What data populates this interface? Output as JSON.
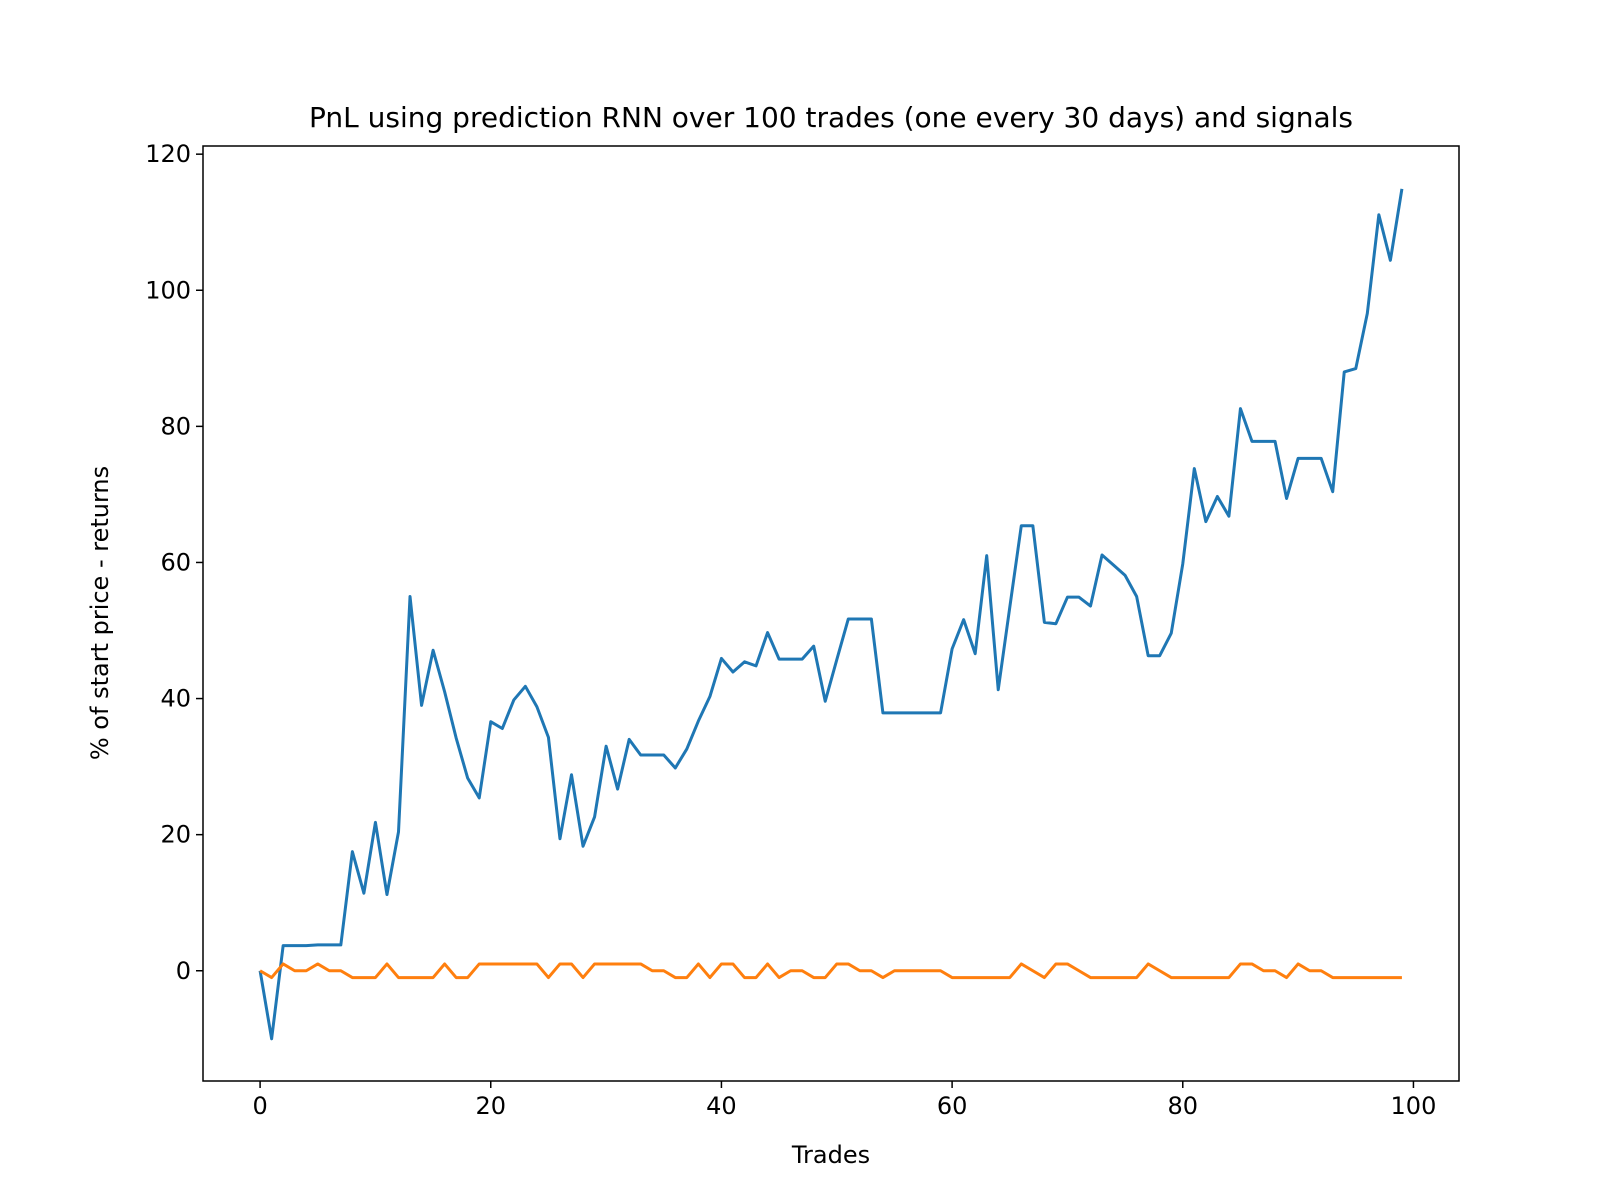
{
  "chart_data": {
    "type": "line",
    "title": "PnL using prediction RNN over 100 trades (one every 30 days) and signals",
    "xlabel": "Trades",
    "ylabel": "% of start price - returns",
    "x": [
      0,
      1,
      2,
      3,
      4,
      5,
      6,
      7,
      8,
      9,
      10,
      11,
      12,
      13,
      14,
      15,
      16,
      17,
      18,
      19,
      20,
      21,
      22,
      23,
      24,
      25,
      26,
      27,
      28,
      29,
      30,
      31,
      32,
      33,
      34,
      35,
      36,
      37,
      38,
      39,
      40,
      41,
      42,
      43,
      44,
      45,
      46,
      47,
      48,
      49,
      50,
      51,
      52,
      53,
      54,
      55,
      56,
      57,
      58,
      59,
      60,
      61,
      62,
      63,
      64,
      65,
      66,
      67,
      68,
      69,
      70,
      71,
      72,
      73,
      74,
      75,
      76,
      77,
      78,
      79,
      80,
      81,
      82,
      83,
      84,
      85,
      86,
      87,
      88,
      89,
      90,
      91,
      92,
      93,
      94,
      95,
      96,
      97,
      98,
      99
    ],
    "series": [
      {
        "color": "#1f77b4",
        "values": [
          0,
          -10,
          3.7,
          3.7,
          3.7,
          3.8,
          3.8,
          3.8,
          17.5,
          11.4,
          21.8,
          11.2,
          20.4,
          55,
          39,
          47.1,
          41,
          34.2,
          28.3,
          25.4,
          36.6,
          35.6,
          39.8,
          41.8,
          38.8,
          34.3,
          19.4,
          28.8,
          18.3,
          22.6,
          33,
          26.7,
          34,
          31.7,
          31.7,
          31.7,
          29.8,
          32.6,
          36.7,
          40.3,
          45.9,
          43.9,
          45.4,
          44.8,
          49.7,
          45.8,
          45.8,
          45.8,
          47.7,
          39.6,
          45.7,
          51.7,
          51.7,
          51.7,
          37.9,
          37.9,
          37.9,
          37.9,
          37.9,
          37.9,
          47.3,
          51.6,
          46.6,
          61,
          41.3,
          53.4,
          65.4,
          65.4,
          51.2,
          51,
          54.9,
          54.9,
          53.6,
          61.1,
          59.6,
          58.1,
          55,
          46.3,
          46.3,
          49.6,
          59.8,
          73.8,
          66,
          69.7,
          66.8,
          82.6,
          77.8,
          77.8,
          77.8,
          69.4,
          75.3,
          75.3,
          75.3,
          70.4,
          88,
          88.5,
          96.6,
          111.1,
          104.4,
          114.9
        ]
      },
      {
        "color": "#ff7f0e",
        "values": [
          0,
          -1,
          1,
          0,
          0,
          1,
          0,
          0,
          -1,
          -1,
          -1,
          1,
          -1,
          -1,
          -1,
          -1,
          1,
          -1,
          -1,
          1,
          1,
          1,
          1,
          1,
          1,
          -1,
          1,
          1,
          -1,
          1,
          1,
          1,
          1,
          1,
          0,
          0,
          -1,
          -1,
          1,
          -1,
          1,
          1,
          -1,
          -1,
          1,
          -1,
          0,
          0,
          -1,
          -1,
          1,
          1,
          0,
          0,
          -1,
          0,
          0,
          0,
          0,
          0,
          -1,
          -1,
          -1,
          -1,
          -1,
          -1,
          1,
          0,
          -1,
          1,
          1,
          0,
          -1,
          -1,
          -1,
          -1,
          -1,
          1,
          0,
          -1,
          -1,
          -1,
          -1,
          -1,
          -1,
          1,
          1,
          0,
          0,
          -1,
          1,
          0,
          0,
          -1,
          -1,
          -1,
          -1,
          -1,
          -1,
          -1
        ]
      }
    ],
    "xlim": [
      -4.95,
      103.95
    ],
    "ylim": [
      -16.2,
      121.2
    ],
    "xticks": [
      0,
      20,
      40,
      60,
      80,
      100
    ],
    "yticks": [
      0,
      20,
      40,
      60,
      80,
      100,
      120
    ]
  }
}
